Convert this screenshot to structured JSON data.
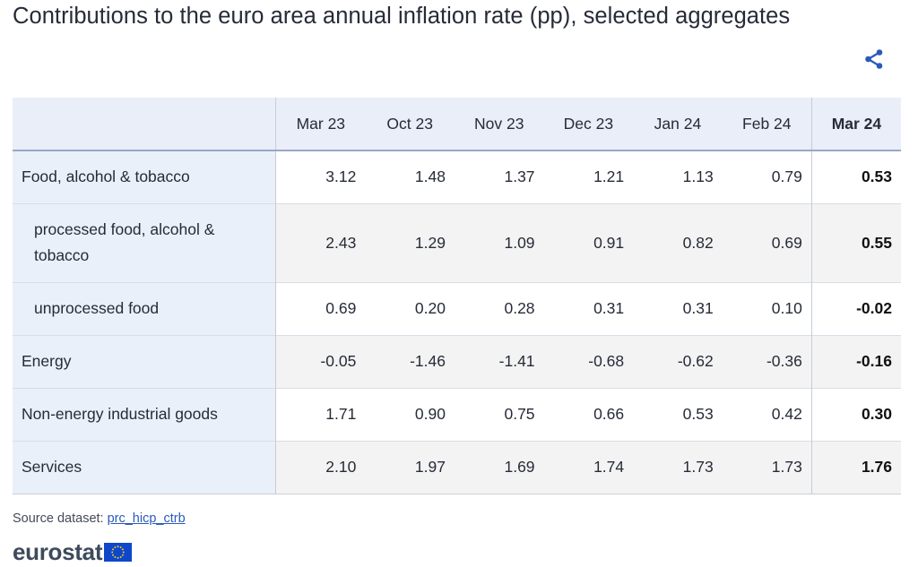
{
  "title": "Contributions to the euro area annual inflation rate (pp), selected aggregates",
  "icons": {
    "share": "share-icon",
    "eu_flag": "eu-flag-icon"
  },
  "colors": {
    "header_bg": "#e9eef9",
    "label_bg": "#eaf0fa",
    "link": "#2a5ab8",
    "flag_blue": "#0e47cb",
    "flag_stars": "#ffd617"
  },
  "chart_data": {
    "type": "table",
    "columns": [
      "Mar 23",
      "Oct 23",
      "Nov 23",
      "Dec 23",
      "Jan 24",
      "Feb 24",
      "Mar 24"
    ],
    "highlight_column": "Mar 24",
    "rows": [
      {
        "label": "Food, alcohol & tobacco",
        "indent": false,
        "values": [
          "3.12",
          "1.48",
          "1.37",
          "1.21",
          "1.13",
          "0.79",
          "0.53"
        ]
      },
      {
        "label": "processed food, alcohol & tobacco",
        "indent": true,
        "values": [
          "2.43",
          "1.29",
          "1.09",
          "0.91",
          "0.82",
          "0.69",
          "0.55"
        ]
      },
      {
        "label": "unprocessed food",
        "indent": true,
        "values": [
          "0.69",
          "0.20",
          "0.28",
          "0.31",
          "0.31",
          "0.10",
          "-0.02"
        ]
      },
      {
        "label": "Energy",
        "indent": false,
        "values": [
          "-0.05",
          "-1.46",
          "-1.41",
          "-0.68",
          "-0.62",
          "-0.36",
          "-0.16"
        ]
      },
      {
        "label": "Non-energy industrial goods",
        "indent": false,
        "values": [
          "1.71",
          "0.90",
          "0.75",
          "0.66",
          "0.53",
          "0.42",
          "0.30"
        ]
      },
      {
        "label": "Services",
        "indent": false,
        "values": [
          "2.10",
          "1.97",
          "1.69",
          "1.74",
          "1.73",
          "1.73",
          "1.76"
        ]
      }
    ]
  },
  "source": {
    "prefix": "Source dataset: ",
    "link_text": "prc_hicp_ctrb"
  },
  "brand": {
    "name": "eurostat"
  }
}
